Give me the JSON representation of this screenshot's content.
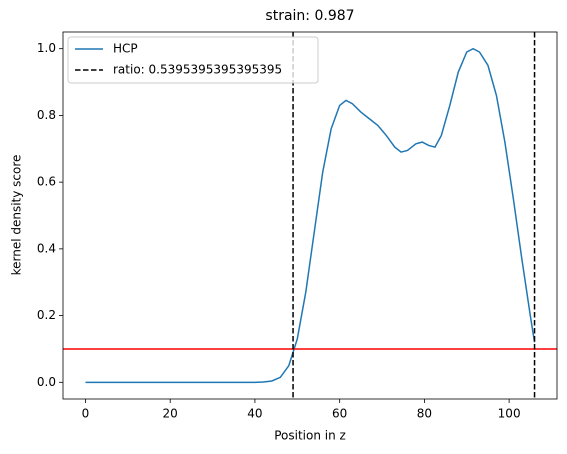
{
  "chart_data": {
    "type": "line",
    "title": "strain: 0.987",
    "xlabel": "Position in z",
    "ylabel": "kernel density score",
    "x": [
      0,
      10,
      20,
      30,
      40,
      42,
      44,
      46,
      48,
      49,
      50,
      52,
      54,
      56,
      58,
      60,
      61.5,
      63,
      65,
      67,
      69,
      71,
      73,
      74.5,
      76,
      78,
      79.5,
      81,
      82.5,
      84,
      86,
      88,
      90,
      91.5,
      93,
      95,
      97,
      99,
      101,
      103,
      105,
      106
    ],
    "series": [
      {
        "name": "HCP",
        "color": "#1f77b4",
        "values": [
          0,
          0,
          0,
          0,
          0,
          0.001,
          0.004,
          0.015,
          0.05,
          0.09,
          0.13,
          0.27,
          0.45,
          0.63,
          0.76,
          0.83,
          0.845,
          0.835,
          0.81,
          0.79,
          0.77,
          0.74,
          0.705,
          0.69,
          0.695,
          0.715,
          0.72,
          0.71,
          0.705,
          0.74,
          0.83,
          0.93,
          0.99,
          1.0,
          0.99,
          0.95,
          0.86,
          0.72,
          0.55,
          0.37,
          0.2,
          0.12
        ]
      }
    ],
    "vlines": {
      "name": "ratio: 0.5395395395395395",
      "color": "#000000",
      "values": [
        49,
        106
      ]
    },
    "hline": {
      "value": 0.1,
      "color": "#ff0000"
    },
    "xlim": [
      -5.3,
      111.3
    ],
    "ylim": [
      -0.05,
      1.05
    ],
    "xticks": [
      0,
      20,
      40,
      60,
      80,
      100
    ],
    "yticks": [
      {
        "value": 0,
        "label": "0.0"
      },
      {
        "value": 0.2,
        "label": "0.2"
      },
      {
        "value": 0.4,
        "label": "0.4"
      },
      {
        "value": 0.6,
        "label": "0.6"
      },
      {
        "value": 0.8,
        "label": "0.8"
      },
      {
        "value": 1,
        "label": "1.0"
      }
    ],
    "legend": "upper left"
  }
}
